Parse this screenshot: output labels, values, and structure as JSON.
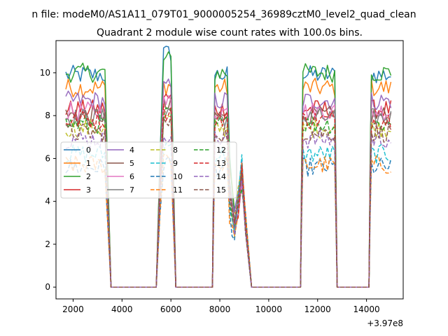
{
  "chart_data": {
    "type": "line",
    "suptitle": "n file: modeM0/AS1A11_079T01_9000005254_36989cztM0_level2_quad_clean",
    "title": "Quadrant 2 module wise count rates with 100.0s bins.",
    "xlabel": "",
    "ylabel": "",
    "x_offset_label": "+3.97e8",
    "xlim": [
      1300,
      15500
    ],
    "ylim": [
      -0.55,
      11.5
    ],
    "xticks": [
      2000,
      4000,
      6000,
      8000,
      10000,
      12000,
      14000
    ],
    "yticks": [
      0,
      2,
      4,
      6,
      8,
      10
    ],
    "legend_placement": "center-left",
    "segments": [
      {
        "start": 1700,
        "end": 3300
      },
      {
        "start": 5700,
        "end": 6000
      },
      {
        "start": 7800,
        "end": 8600
      },
      {
        "start": 11400,
        "end": 12700
      },
      {
        "start": 14200,
        "end": 15000
      }
    ],
    "drops": [
      {
        "at": 3300,
        "to": 3550
      },
      {
        "at": 6000,
        "to": 6200
      },
      {
        "at": 8600,
        "to": 9300
      },
      {
        "at": 12700,
        "to": 12800
      },
      {
        "at": 15000,
        "to": 15000
      }
    ],
    "rises": [
      {
        "from": 5400,
        "to": 5700
      },
      {
        "from": 7700,
        "to": 7800
      },
      {
        "from": 11300,
        "to": 11400
      },
      {
        "from": 14100,
        "to": 14200
      }
    ],
    "series": [
      {
        "name": "0",
        "color": "#1f77b4",
        "dash": "solid",
        "level": 9.9,
        "peak": 10.9
      },
      {
        "name": "1",
        "color": "#ff7f0e",
        "dash": "solid",
        "level": 9.3,
        "peak": 9.4
      },
      {
        "name": "2",
        "color": "#2ca02c",
        "dash": "solid",
        "level": 10.0,
        "peak": 10.6
      },
      {
        "name": "3",
        "color": "#d62728",
        "dash": "solid",
        "level": 8.3,
        "peak": 8.8
      },
      {
        "name": "4",
        "color": "#9467bd",
        "dash": "solid",
        "level": 8.7,
        "peak": 9.3
      },
      {
        "name": "5",
        "color": "#8c564b",
        "dash": "solid",
        "level": 8.0,
        "peak": 8.4
      },
      {
        "name": "6",
        "color": "#e377c2",
        "dash": "solid",
        "level": 8.2,
        "peak": 8.6
      },
      {
        "name": "7",
        "color": "#7f7f7f",
        "dash": "solid",
        "level": 7.9,
        "peak": 8.2
      },
      {
        "name": "8",
        "color": "#bcbd22",
        "dash": "dashed",
        "level": 7.4,
        "peak": 7.8
      },
      {
        "name": "9",
        "color": "#17becf",
        "dash": "dashed",
        "level": 6.2,
        "peak": 6.6
      },
      {
        "name": "10",
        "color": "#1f77b4",
        "dash": "dashed",
        "level": 5.6,
        "peak": 5.8
      },
      {
        "name": "11",
        "color": "#ff7f0e",
        "dash": "dashed",
        "level": 5.7,
        "peak": 6.1
      },
      {
        "name": "12",
        "color": "#2ca02c",
        "dash": "dashed",
        "level": 7.6,
        "peak": 8.0
      },
      {
        "name": "13",
        "color": "#d62728",
        "dash": "dashed",
        "level": 7.8,
        "peak": 8.2
      },
      {
        "name": "14",
        "color": "#9467bd",
        "dash": "dashed",
        "level": 6.9,
        "peak": 7.2
      },
      {
        "name": "15",
        "color": "#8c564b",
        "dash": "dashed",
        "level": 7.2,
        "peak": 7.6
      }
    ]
  }
}
